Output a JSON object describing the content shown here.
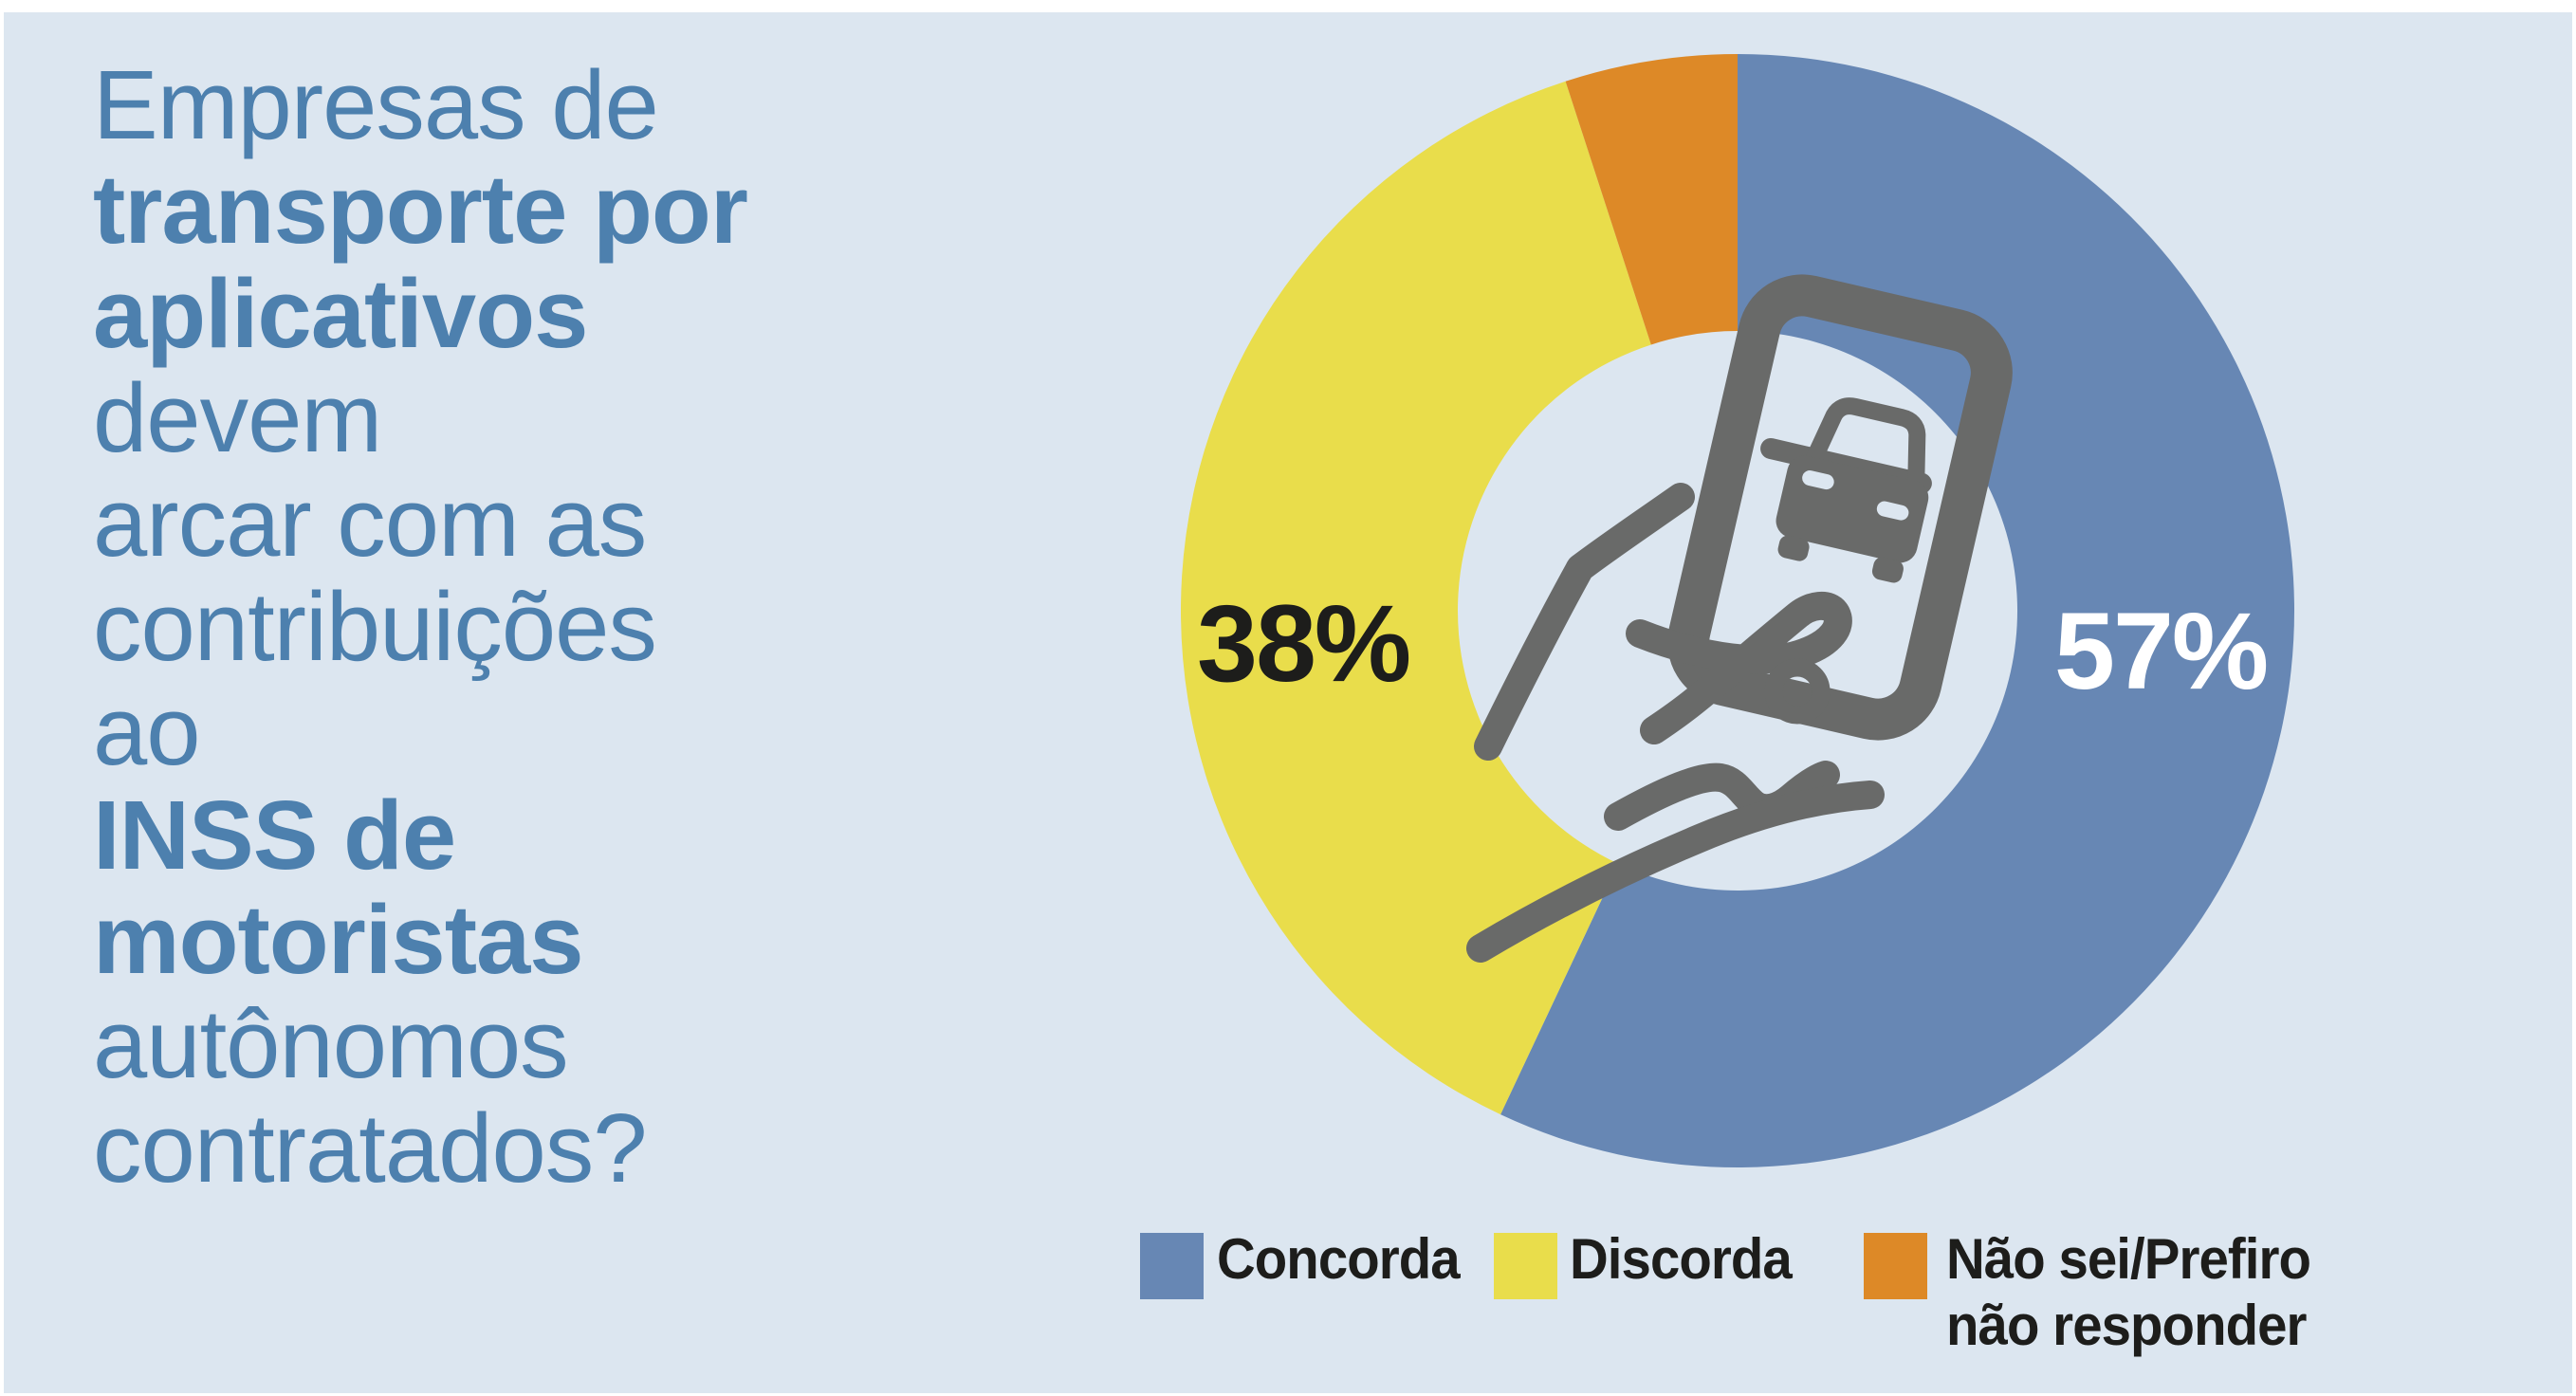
{
  "colors": {
    "panel_background": "#dce6f0",
    "title_text": "#4d80ae",
    "dark_text": "#1d1d1b",
    "icon_gray": "#696a69",
    "concorda_blue": "#6787b4",
    "discorda_yellow": "#e9dd4b",
    "naosei_orange": "#dd8927"
  },
  "title": {
    "full_text": "Empresas de transporte por aplicativos devem arcar com as contribuições ao INSS de motoristas autônomos contratados?",
    "lines": [
      {
        "segments": [
          {
            "t": "Empresas de",
            "b": false
          }
        ]
      },
      {
        "segments": [
          {
            "t": "transporte por",
            "b": true
          }
        ]
      },
      {
        "segments": [
          {
            "t": "aplicativos",
            "b": true
          },
          {
            "t": " devem",
            "b": false
          }
        ]
      },
      {
        "segments": [
          {
            "t": "arcar com as",
            "b": false
          }
        ]
      },
      {
        "segments": [
          {
            "t": "contribuições ao",
            "b": false
          }
        ]
      },
      {
        "segments": [
          {
            "t": "INSS de",
            "b": true
          }
        ]
      },
      {
        "segments": [
          {
            "t": "motoristas",
            "b": true
          }
        ]
      },
      {
        "segments": [
          {
            "t": "autônomos",
            "b": false
          }
        ]
      },
      {
        "segments": [
          {
            "t": "contratados?",
            "b": false
          }
        ]
      }
    ]
  },
  "chart_data": {
    "type": "pie",
    "donut": true,
    "title": "Empresas de transporte por aplicativos devem arcar com as contribuições ao INSS de motoristas autônomos contratados?",
    "start_angle_deg_from_top": 0,
    "direction": "clockwise",
    "slices": [
      {
        "label": "Concorda",
        "value_pct": 57,
        "color": "#6787b4",
        "data_label": "57%",
        "data_label_color": "#ffffff"
      },
      {
        "label": "Discorda",
        "value_pct": 38,
        "color": "#e9dd4b",
        "data_label": "38%",
        "data_label_color": "#1d1d1b"
      },
      {
        "label": "Não sei/Prefiro não responder",
        "value_pct": 5,
        "color": "#dd8927",
        "data_label": "",
        "data_label_color": ""
      }
    ],
    "legend_position": "bottom",
    "center_icon": "hand-holding-smartphone-with-car"
  },
  "labels": {
    "concorda_pct": "57%",
    "discorda_pct": "38%"
  },
  "legend": {
    "items": [
      {
        "label": "Concorda",
        "color": "#6787b4"
      },
      {
        "label": "Discorda",
        "color": "#e9dd4b"
      },
      {
        "label": "Não sei/Prefiro\nnão responder",
        "color": "#dd8927"
      }
    ]
  },
  "icon": {
    "name": "hand-holding-smartphone-with-car-icon",
    "color": "#696a69"
  }
}
